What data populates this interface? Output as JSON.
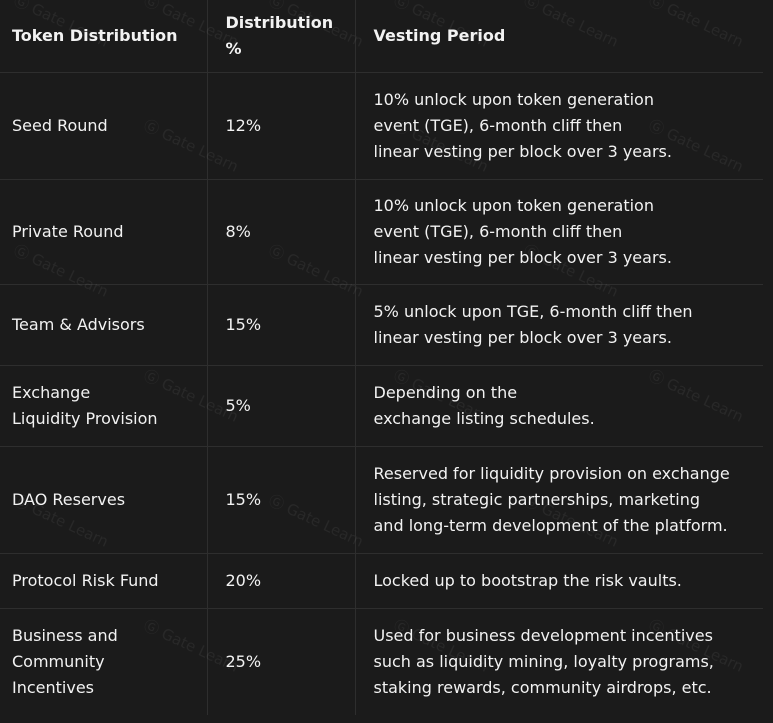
{
  "table": {
    "headers": {
      "col1": "Token Distribution",
      "col2_line1": "Distribution",
      "col2_line2": "%",
      "col3": "Vesting Period"
    },
    "rows": [
      {
        "name_lines": [
          "Seed Round"
        ],
        "percent": "12%",
        "vesting_lines": [
          "10% unlock upon token generation",
          "event (TGE), 6-month cliff then",
          "linear vesting per block over 3 years."
        ]
      },
      {
        "name_lines": [
          "Private Round"
        ],
        "percent": "8%",
        "vesting_lines": [
          "10% unlock upon token generation",
          "event (TGE), 6-month cliff then",
          "linear vesting per block over 3 years."
        ]
      },
      {
        "name_lines": [
          "Team & Advisors"
        ],
        "percent": "15%",
        "vesting_lines": [
          "5% unlock upon TGE, 6-month cliff then",
          "linear vesting per block over 3 years."
        ]
      },
      {
        "name_lines": [
          "Exchange",
          "Liquidity Provision"
        ],
        "percent": "5%",
        "vesting_lines": [
          "Depending on the",
          "exchange listing schedules."
        ]
      },
      {
        "name_lines": [
          "DAO Reserves"
        ],
        "percent": "15%",
        "vesting_lines": [
          "Reserved for liquidity provision on exchange",
          "listing, strategic partnerships, marketing",
          "and long-term development of the platform."
        ]
      },
      {
        "name_lines": [
          "Protocol Risk Fund"
        ],
        "percent": "20%",
        "vesting_lines": [
          "Locked up to bootstrap the risk vaults."
        ]
      },
      {
        "name_lines": [
          "Business and",
          "Community",
          "Incentives"
        ],
        "percent": "25%",
        "vesting_lines": [
          "Used for business development incentives",
          "such as liquidity mining, loyalty programs,",
          "staking rewards, community airdrops, etc."
        ]
      }
    ]
  },
  "watermark": {
    "text": "Gate Learn"
  }
}
